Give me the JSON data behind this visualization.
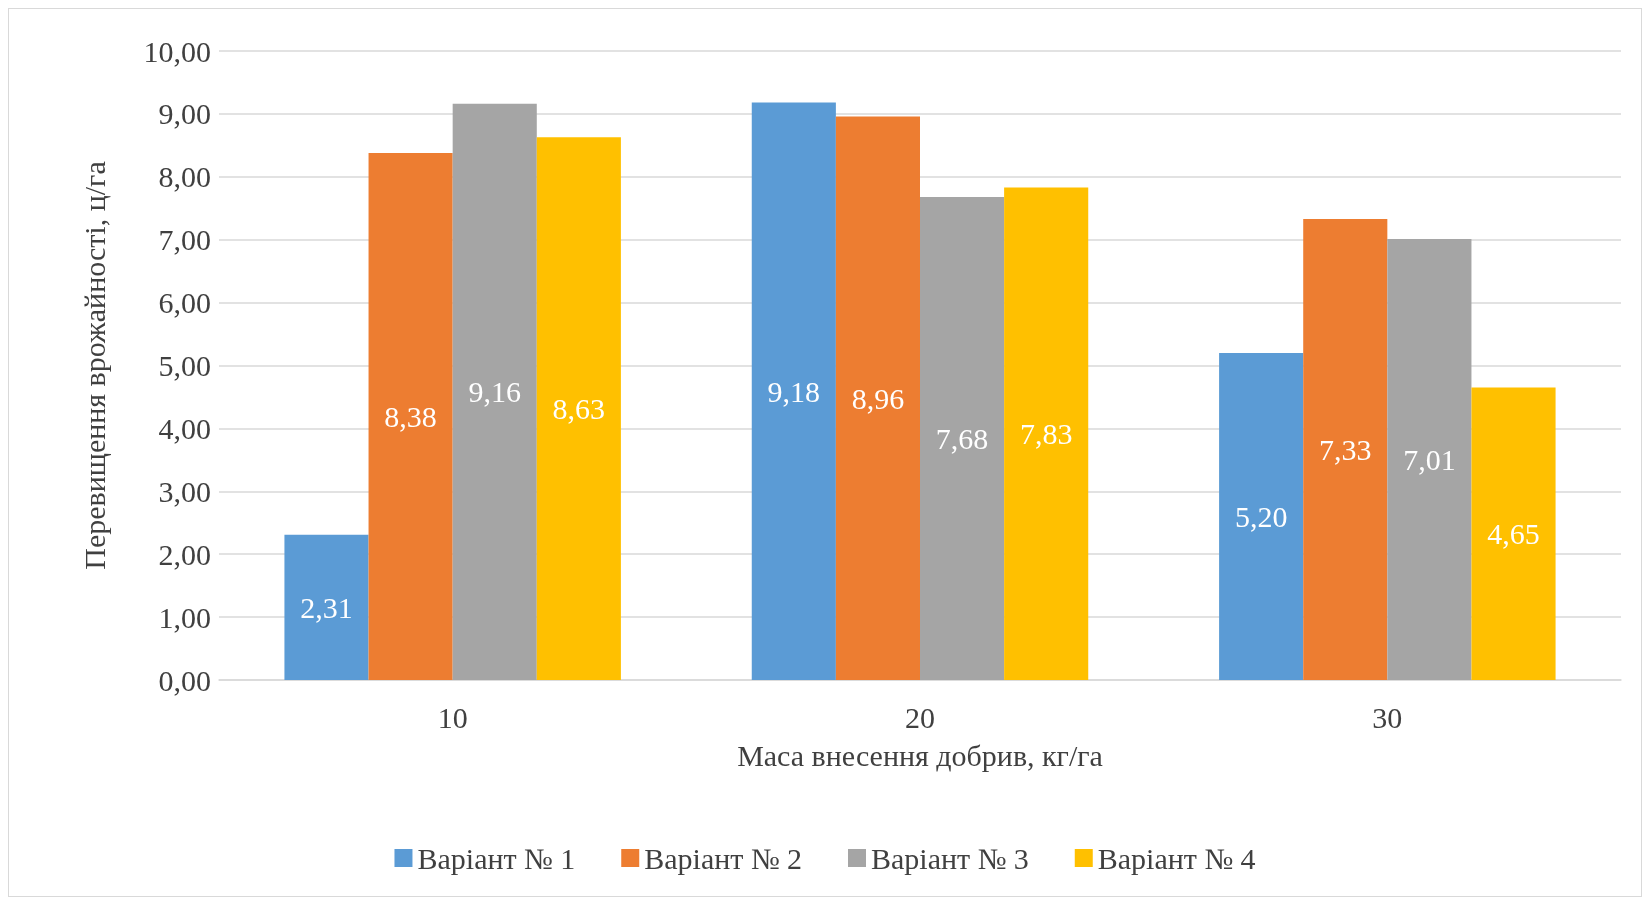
{
  "chart_data": {
    "type": "bar",
    "categories": [
      "10",
      "20",
      "30"
    ],
    "xlabel": "Маса внесення добрив, кг/га",
    "ylabel": "Перевищення врожайності, ц/га",
    "series": [
      {
        "name": "Варіант № 1",
        "color": "#5b9bd5",
        "values": [
          2.31,
          9.18,
          5.2
        ],
        "value_labels": [
          "2,31",
          "9,18",
          "5,20"
        ]
      },
      {
        "name": "Варіант № 2",
        "color": "#ed7d31",
        "values": [
          8.38,
          8.96,
          7.33
        ],
        "value_labels": [
          "8,38",
          "8,96",
          "7,33"
        ]
      },
      {
        "name": "Варіант № 3",
        "color": "#a5a5a5",
        "values": [
          9.16,
          7.68,
          7.01
        ],
        "value_labels": [
          "9,16",
          "7,68",
          "7,01"
        ]
      },
      {
        "name": "Варіант № 4",
        "color": "#ffc000",
        "values": [
          8.63,
          7.83,
          4.65
        ],
        "value_labels": [
          "8,63",
          "7,83",
          "4,65"
        ]
      }
    ],
    "ylim": [
      0,
      10
    ],
    "yticks": [
      {
        "value": 0,
        "label": "0,00"
      },
      {
        "value": 1,
        "label": "1,00"
      },
      {
        "value": 2,
        "label": "2,00"
      },
      {
        "value": 3,
        "label": "3,00"
      },
      {
        "value": 4,
        "label": "4,00"
      },
      {
        "value": 5,
        "label": "5,00"
      },
      {
        "value": 6,
        "label": "6,00"
      },
      {
        "value": 7,
        "label": "7,00"
      },
      {
        "value": 8,
        "label": "8,00"
      },
      {
        "value": 9,
        "label": "9,00"
      },
      {
        "value": 10,
        "label": "10,00"
      }
    ],
    "grid": "y",
    "legend": "bottom"
  }
}
